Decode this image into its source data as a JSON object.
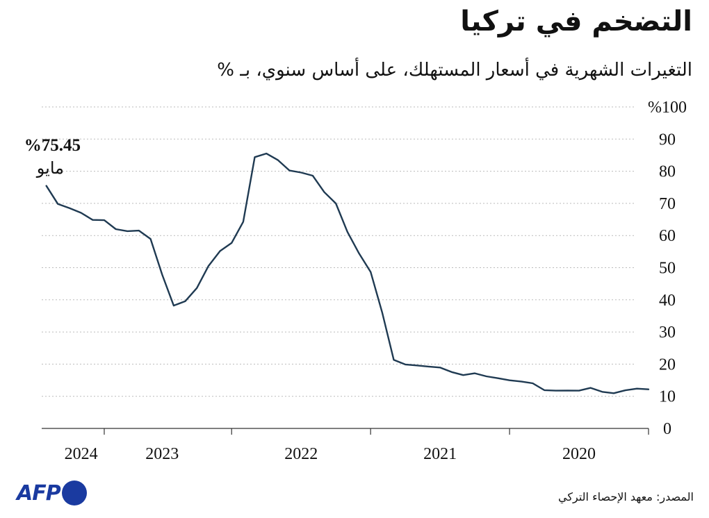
{
  "title": "التضخم في تركيا",
  "subtitle": "التغيرات الشهرية في أسعار المستهلك، على أساس سنوي، بـ %",
  "source": "المصدر: معهد الإحصاء التركي",
  "logo": {
    "text": "AFP",
    "color": "#1a3aa0"
  },
  "colors": {
    "line": "#1f3a52",
    "grid": "#bbbbbb",
    "axis": "#333333"
  },
  "chart_data": {
    "type": "line",
    "title": "التضخم في تركيا",
    "ylabel": "التغيرات الشهرية في أسعار المستهلك، على أساس سنوي، بـ %",
    "ylim": [
      0,
      100
    ],
    "y_ticks": [
      {
        "value": 100,
        "label": "%100"
      },
      {
        "value": 90,
        "label": "90"
      },
      {
        "value": 80,
        "label": "80"
      },
      {
        "value": 70,
        "label": "70"
      },
      {
        "value": 60,
        "label": "60"
      },
      {
        "value": 50,
        "label": "50"
      },
      {
        "value": 40,
        "label": "40"
      },
      {
        "value": 30,
        "label": "30"
      },
      {
        "value": 20,
        "label": "20"
      },
      {
        "value": 10,
        "label": "10"
      },
      {
        "value": 0,
        "label": "0"
      }
    ],
    "x_direction": "right-to-left",
    "x_unit": "months since Jan 2020",
    "xlim": [
      0,
      52.4
    ],
    "year_labels": [
      {
        "label": "2020",
        "month": 6
      },
      {
        "label": "2021",
        "month": 18
      },
      {
        "label": "2022",
        "month": 30
      },
      {
        "label": "2023",
        "month": 42
      },
      {
        "label": "2024",
        "month": 49
      }
    ],
    "year_boundaries": [
      0,
      12,
      24,
      36,
      47
    ],
    "series": [
      {
        "name": "التضخم",
        "x": [
          0,
          1,
          2,
          3,
          4,
          5,
          6,
          7,
          8,
          9,
          10,
          11,
          12,
          13,
          14,
          15,
          16,
          17,
          18,
          19,
          20,
          21,
          22,
          23,
          24,
          25,
          26,
          27,
          28,
          29,
          30,
          31,
          32,
          33,
          34,
          35,
          36,
          37,
          38,
          39,
          40,
          41,
          42,
          43,
          44,
          45,
          46,
          47,
          48,
          49,
          50,
          51,
          52
        ],
        "values": [
          12.15,
          12.37,
          11.86,
          10.94,
          11.39,
          12.62,
          11.76,
          11.77,
          11.75,
          11.89,
          14.03,
          14.6,
          14.97,
          15.61,
          16.19,
          17.14,
          16.59,
          17.53,
          18.95,
          19.25,
          19.58,
          19.89,
          21.31,
          36.08,
          48.69,
          54.44,
          61.14,
          69.97,
          73.5,
          78.62,
          79.6,
          80.21,
          83.45,
          85.51,
          84.39,
          64.27,
          57.68,
          55.18,
          50.51,
          43.68,
          39.59,
          38.21,
          47.83,
          58.94,
          61.53,
          61.36,
          61.98,
          64.77,
          64.86,
          67.07,
          68.5,
          69.8,
          75.45
        ]
      }
    ],
    "annotations": [
      {
        "value_label": "%75.45",
        "date_label": "مايو",
        "month": 52,
        "value": 75.45
      }
    ]
  }
}
